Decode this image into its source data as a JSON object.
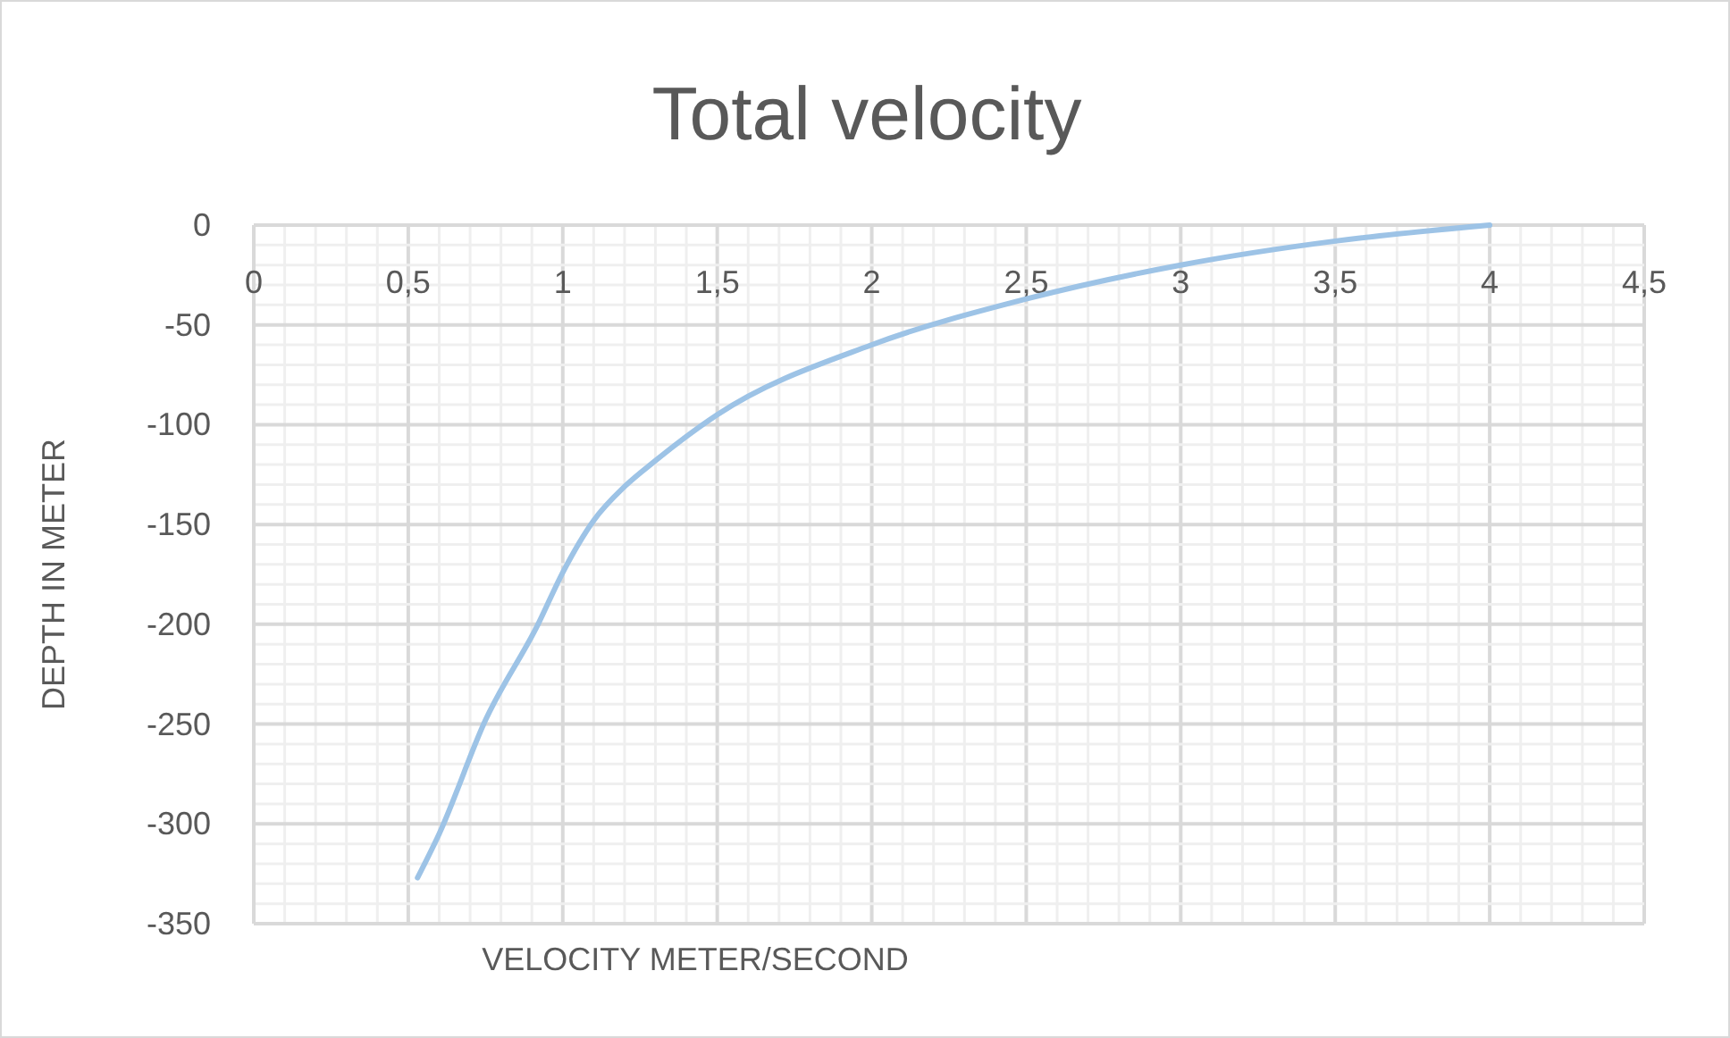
{
  "chart_data": {
    "type": "line",
    "title": "Total velocity",
    "xlabel": "VELOCITY METER/SECOND",
    "ylabel": "DEPTH IN METER",
    "series": [
      {
        "color": "#9dc3e6",
        "x": [
          0.53,
          0.6,
          0.75,
          0.92,
          1,
          1.1,
          1.2,
          1.3,
          1.5,
          2,
          2.5,
          3,
          3.5,
          4
        ],
        "values": [
          -327,
          -305,
          -248,
          -200,
          -174,
          -148,
          -131,
          -118,
          -95,
          -60,
          -37,
          -20,
          -8,
          0
        ]
      }
    ],
    "xlim": [
      0,
      4.5
    ],
    "ylim": [
      -350,
      0
    ],
    "xticks": [
      0,
      {
        "value": 0.1,
        "label": null
      },
      {
        "value": 0.2,
        "label": null
      },
      {
        "value": 0.3,
        "label": null
      },
      {
        "value": 0.4,
        "label": null
      },
      {
        "value": 0.5,
        "label": "0,5"
      },
      {
        "value": 0.6,
        "label": null
      },
      {
        "value": 0.7,
        "label": null
      },
      {
        "value": 0.8,
        "label": null
      },
      {
        "value": 0.9,
        "label": null
      },
      1,
      {
        "value": 1.1,
        "label": null
      },
      {
        "value": 1.2,
        "label": null
      },
      {
        "value": 1.3,
        "label": null
      },
      {
        "value": 1.4,
        "label": null
      },
      {
        "value": 1.5,
        "label": "1,5"
      },
      {
        "value": 1.6,
        "label": null
      },
      {
        "value": 1.7,
        "label": null
      },
      {
        "value": 1.8,
        "label": null
      },
      {
        "value": 1.9,
        "label": null
      },
      2,
      {
        "value": 2.1,
        "label": null
      },
      {
        "value": 2.2,
        "label": null
      },
      {
        "value": 2.3,
        "label": null
      },
      {
        "value": 2.4,
        "label": null
      },
      {
        "value": 2.5,
        "label": "2,5"
      },
      {
        "value": 2.6,
        "label": null
      },
      {
        "value": 2.7,
        "label": null
      },
      {
        "value": 2.8,
        "label": null
      },
      {
        "value": 2.9,
        "label": null
      },
      3,
      {
        "value": 3.1,
        "label": null
      },
      {
        "value": 3.2,
        "label": null
      },
      {
        "value": 3.3,
        "label": null
      },
      {
        "value": 3.4,
        "label": null
      },
      {
        "value": 3.5,
        "label": "3,5"
      },
      {
        "value": 3.6,
        "label": null
      },
      {
        "value": 3.7,
        "label": null
      },
      {
        "value": 3.8,
        "label": null
      },
      {
        "value": 3.9,
        "label": null
      },
      4,
      {
        "value": 4.1,
        "label": null
      },
      {
        "value": 4.2,
        "label": null
      },
      {
        "value": 4.3,
        "label": null
      },
      {
        "value": 4.4,
        "label": null
      },
      {
        "value": 4.5,
        "label": "4,5"
      }
    ],
    "yticks": [
      0,
      {
        "value": -10,
        "label": null
      },
      {
        "value": -20,
        "label": null
      },
      {
        "value": -30,
        "label": null
      },
      {
        "value": -40,
        "label": null
      },
      -50,
      {
        "value": -60,
        "label": null
      },
      {
        "value": -70,
        "label": null
      },
      {
        "value": -80,
        "label": null
      },
      {
        "value": -90,
        "label": null
      },
      -100,
      {
        "value": -110,
        "label": null
      },
      {
        "value": -120,
        "label": null
      },
      {
        "value": -130,
        "label": null
      },
      {
        "value": -140,
        "label": null
      },
      -150,
      {
        "value": -160,
        "label": null
      },
      {
        "value": -170,
        "label": null
      },
      {
        "value": -180,
        "label": null
      },
      {
        "value": -190,
        "label": null
      },
      -200,
      {
        "value": -210,
        "label": null
      },
      {
        "value": -220,
        "label": null
      },
      {
        "value": -230,
        "label": null
      },
      {
        "value": -240,
        "label": null
      },
      -250,
      {
        "value": -260,
        "label": null
      },
      {
        "value": -270,
        "label": null
      },
      {
        "value": -280,
        "label": null
      },
      {
        "value": -290,
        "label": null
      },
      -300,
      {
        "value": -310,
        "label": null
      },
      {
        "value": -320,
        "label": null
      },
      {
        "value": -330,
        "label": null
      },
      {
        "value": -340,
        "label": null
      },
      -350
    ],
    "grid": true,
    "marker": "none",
    "line_style": "solid"
  }
}
